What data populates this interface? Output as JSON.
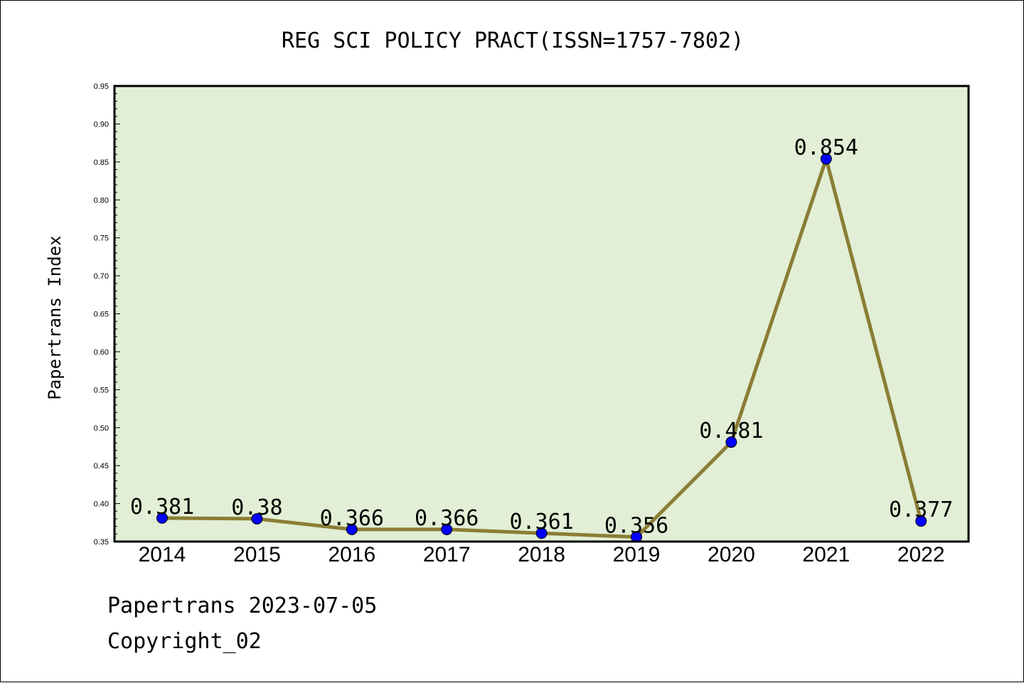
{
  "chart_data": {
    "type": "line",
    "title": "REG SCI POLICY PRACT(ISSN=1757-7802)",
    "ylabel": "Papertrans Index",
    "xlabel": "",
    "categories": [
      "2014",
      "2015",
      "2016",
      "2017",
      "2018",
      "2019",
      "2020",
      "2021",
      "2022"
    ],
    "series": [
      {
        "values": [
          0.381,
          0.38,
          0.366,
          0.366,
          0.361,
          0.356,
          0.481,
          0.854,
          0.377
        ]
      }
    ],
    "data_labels": [
      "0.381",
      "0.38",
      "0.366",
      "0.366",
      "0.361",
      "0.356",
      "0.481",
      "0.854",
      "0.377"
    ],
    "ylim": [
      0.35,
      0.95
    ],
    "yticks": [
      "0.35",
      "0.40",
      "0.45",
      "0.50",
      "0.55",
      "0.60",
      "0.65",
      "0.70",
      "0.75",
      "0.80",
      "0.85",
      "0.90",
      "0.95"
    ],
    "grid": false,
    "colors": {
      "plot_background": "#e2efd6",
      "line": "#8b7d35",
      "marker": "#0000ff"
    }
  },
  "footer": {
    "line1": "Papertrans 2023-07-05",
    "line2": "Copyright_02"
  }
}
